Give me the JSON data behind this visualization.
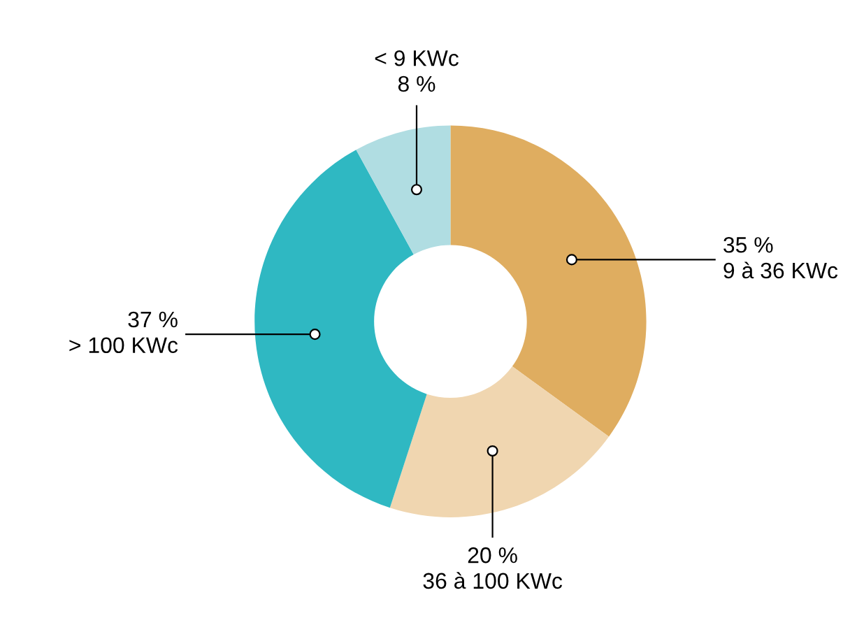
{
  "chart_data": {
    "type": "donut",
    "categories": [
      "9 à 36 KWc",
      "36 à 100 KWc",
      "> 100 KWc",
      "< 9 KWc"
    ],
    "values": [
      35,
      20,
      37,
      8
    ],
    "value_labels": [
      "35 %",
      "20 %",
      "37 %",
      "8 %"
    ],
    "colors": [
      "#dfad60",
      "#f0d6b0",
      "#2fb8c2",
      "#b0dde2"
    ],
    "legend": false
  }
}
